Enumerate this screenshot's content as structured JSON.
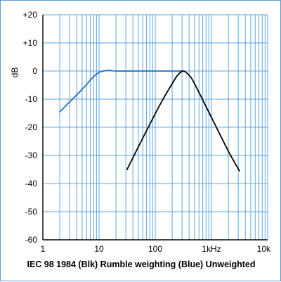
{
  "chart_data": {
    "type": "line",
    "title": "IEC 98 1984 (Blk) Rumble weighting  (Blue) Unweighted",
    "xlabel": "",
    "ylabel": "dB",
    "x_scale": "log",
    "xlim": [
      1,
      10000
    ],
    "ylim": [
      -60,
      20
    ],
    "grid": true,
    "x_tick_labels": [
      {
        "value": 1,
        "label": "1"
      },
      {
        "value": 10,
        "label": "10"
      },
      {
        "value": 100,
        "label": "100"
      },
      {
        "value": 1000,
        "label": "1kHz"
      },
      {
        "value": 10000,
        "label": "10k"
      }
    ],
    "y_tick_labels": [
      {
        "value": 20,
        "label": "+20"
      },
      {
        "value": 10,
        "label": "+10"
      },
      {
        "value": 0,
        "label": "0"
      },
      {
        "value": -10,
        "label": "-10"
      },
      {
        "value": -20,
        "label": "-20"
      },
      {
        "value": -30,
        "label": "-30"
      },
      {
        "value": -40,
        "label": "-40"
      },
      {
        "value": -50,
        "label": "-50"
      },
      {
        "value": -60,
        "label": "-60"
      }
    ],
    "series": [
      {
        "color": "#1f6fc2",
        "x": [
          2,
          3,
          4,
          5,
          6,
          8,
          10,
          12,
          14,
          16,
          20,
          50,
          100,
          200,
          315
        ],
        "y": [
          -14.5,
          -11,
          -8.5,
          -6.5,
          -4.8,
          -2,
          -0.5,
          0,
          0.2,
          0.2,
          0,
          0,
          0,
          0,
          0
        ]
      },
      {
        "color": "#000000",
        "x": [
          31.5,
          63,
          125,
          200,
          250,
          315,
          400,
          500,
          1000,
          2000,
          3150
        ],
        "y": [
          -35,
          -23,
          -11.5,
          -4.5,
          -1.5,
          0,
          -1.5,
          -4.5,
          -16.5,
          -28.5,
          -35.5
        ]
      }
    ],
    "colors": {
      "grid": "#5da3dc",
      "axis": "#000000",
      "frame": "#5d9bd3"
    }
  }
}
